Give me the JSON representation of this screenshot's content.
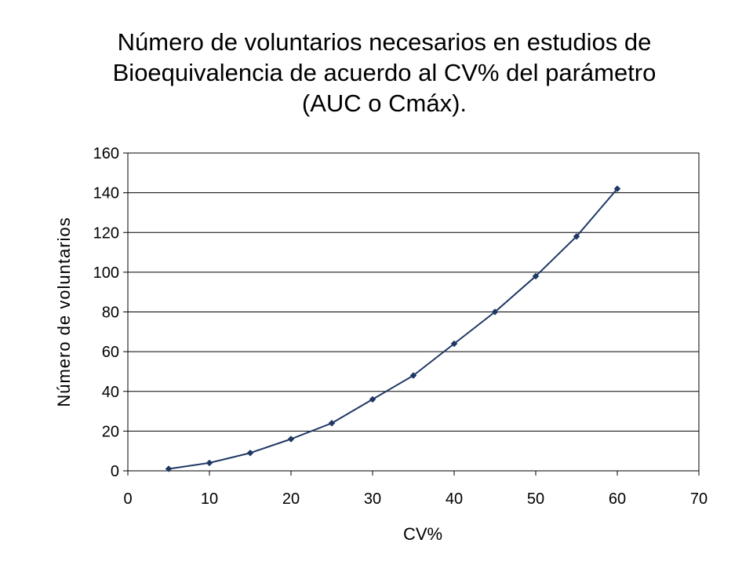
{
  "chart_data": {
    "type": "line",
    "title_lines": [
      "Número de voluntarios necesarios en estudios de",
      "Bioequivalencia de acuerdo al CV% del parámetro",
      "(AUC o Cmáx)."
    ],
    "xlabel": "CV%",
    "ylabel": "Número de voluntarios",
    "xlim": [
      0,
      70
    ],
    "ylim": [
      0,
      160
    ],
    "x_ticks": [
      0,
      10,
      20,
      30,
      40,
      50,
      60,
      70
    ],
    "y_ticks": [
      0,
      20,
      40,
      60,
      80,
      100,
      120,
      140,
      160
    ],
    "grid": "horizontal",
    "legend": "none",
    "series": [
      {
        "color": "#1f3864",
        "marker": "diamond",
        "x": [
          5,
          10,
          15,
          20,
          25,
          30,
          35,
          40,
          45,
          50,
          55,
          60
        ],
        "y": [
          1,
          4,
          9,
          16,
          24,
          36,
          48,
          64,
          80,
          98,
          118,
          142
        ]
      }
    ]
  }
}
